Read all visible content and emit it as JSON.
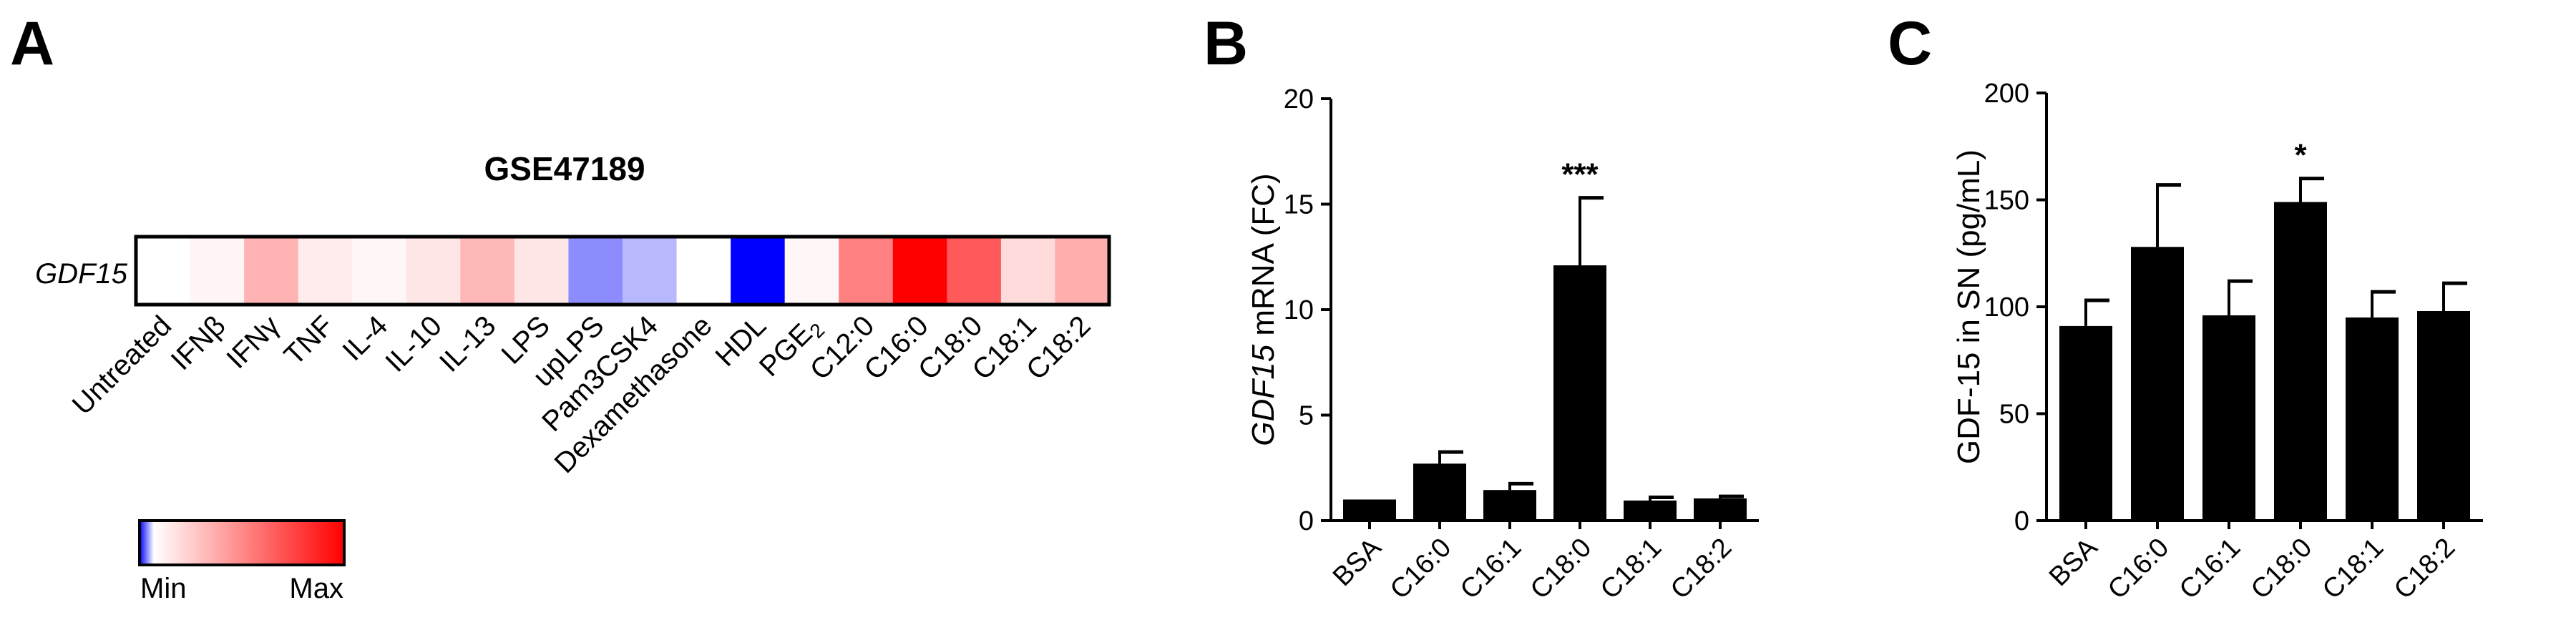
{
  "panels": {
    "a": "A",
    "b": "B",
    "c": "C"
  },
  "chart_data": [
    {
      "type": "heatmap",
      "panel": "A",
      "title": "GSE47189",
      "row_label": "GDF15",
      "categories": [
        "Untreated",
        "IFNβ",
        "IFNγ",
        "TNF",
        "IL-4",
        "IL-10",
        "IL-13",
        "LPS",
        "upLPS",
        "Pam3CSK4",
        "Dexamethasone",
        "HDL",
        "PGE2",
        "C12:0",
        "C16:0",
        "C18:0",
        "C18:1",
        "C18:2"
      ],
      "values": [
        0.0,
        0.04,
        0.3,
        0.07,
        0.03,
        0.1,
        0.28,
        0.1,
        -0.45,
        -0.28,
        0.0,
        -1.0,
        0.03,
        0.5,
        1.0,
        0.65,
        0.14,
        0.32
      ],
      "colorbar": {
        "min_label": "Min",
        "max_label": "Max",
        "min_color": "#0000ff",
        "mid_color": "#ffffff",
        "max_color": "#ff0000"
      }
    },
    {
      "type": "bar",
      "panel": "B",
      "categories": [
        "BSA",
        "C16:0",
        "C16:1",
        "C18:0",
        "C18:1",
        "C18:2"
      ],
      "values": [
        1.0,
        2.7,
        1.45,
        12.1,
        0.95,
        1.05
      ],
      "errors": [
        0.0,
        0.55,
        0.3,
        3.2,
        0.15,
        0.1
      ],
      "annotations": [
        "",
        "",
        "",
        "***",
        "",
        ""
      ],
      "ylabel_italic": "GDF15",
      "ylabel_rest": " mRNA (FC)",
      "ylim": [
        0,
        20
      ],
      "yticks": [
        "0",
        "5",
        "10",
        "15",
        "20"
      ]
    },
    {
      "type": "bar",
      "panel": "C",
      "categories": [
        "BSA",
        "C16:0",
        "C16:1",
        "C18:0",
        "C18:1",
        "C18:2"
      ],
      "values": [
        91,
        128,
        96,
        149,
        95,
        98
      ],
      "errors": [
        12,
        29,
        16,
        11,
        12,
        13
      ],
      "annotations": [
        "",
        "",
        "",
        "*",
        "",
        ""
      ],
      "ylabel": "GDF-15 in SN (pg/mL)",
      "ylim": [
        0,
        200
      ],
      "yticks": [
        "0",
        "50",
        "100",
        "150",
        "200"
      ]
    }
  ]
}
